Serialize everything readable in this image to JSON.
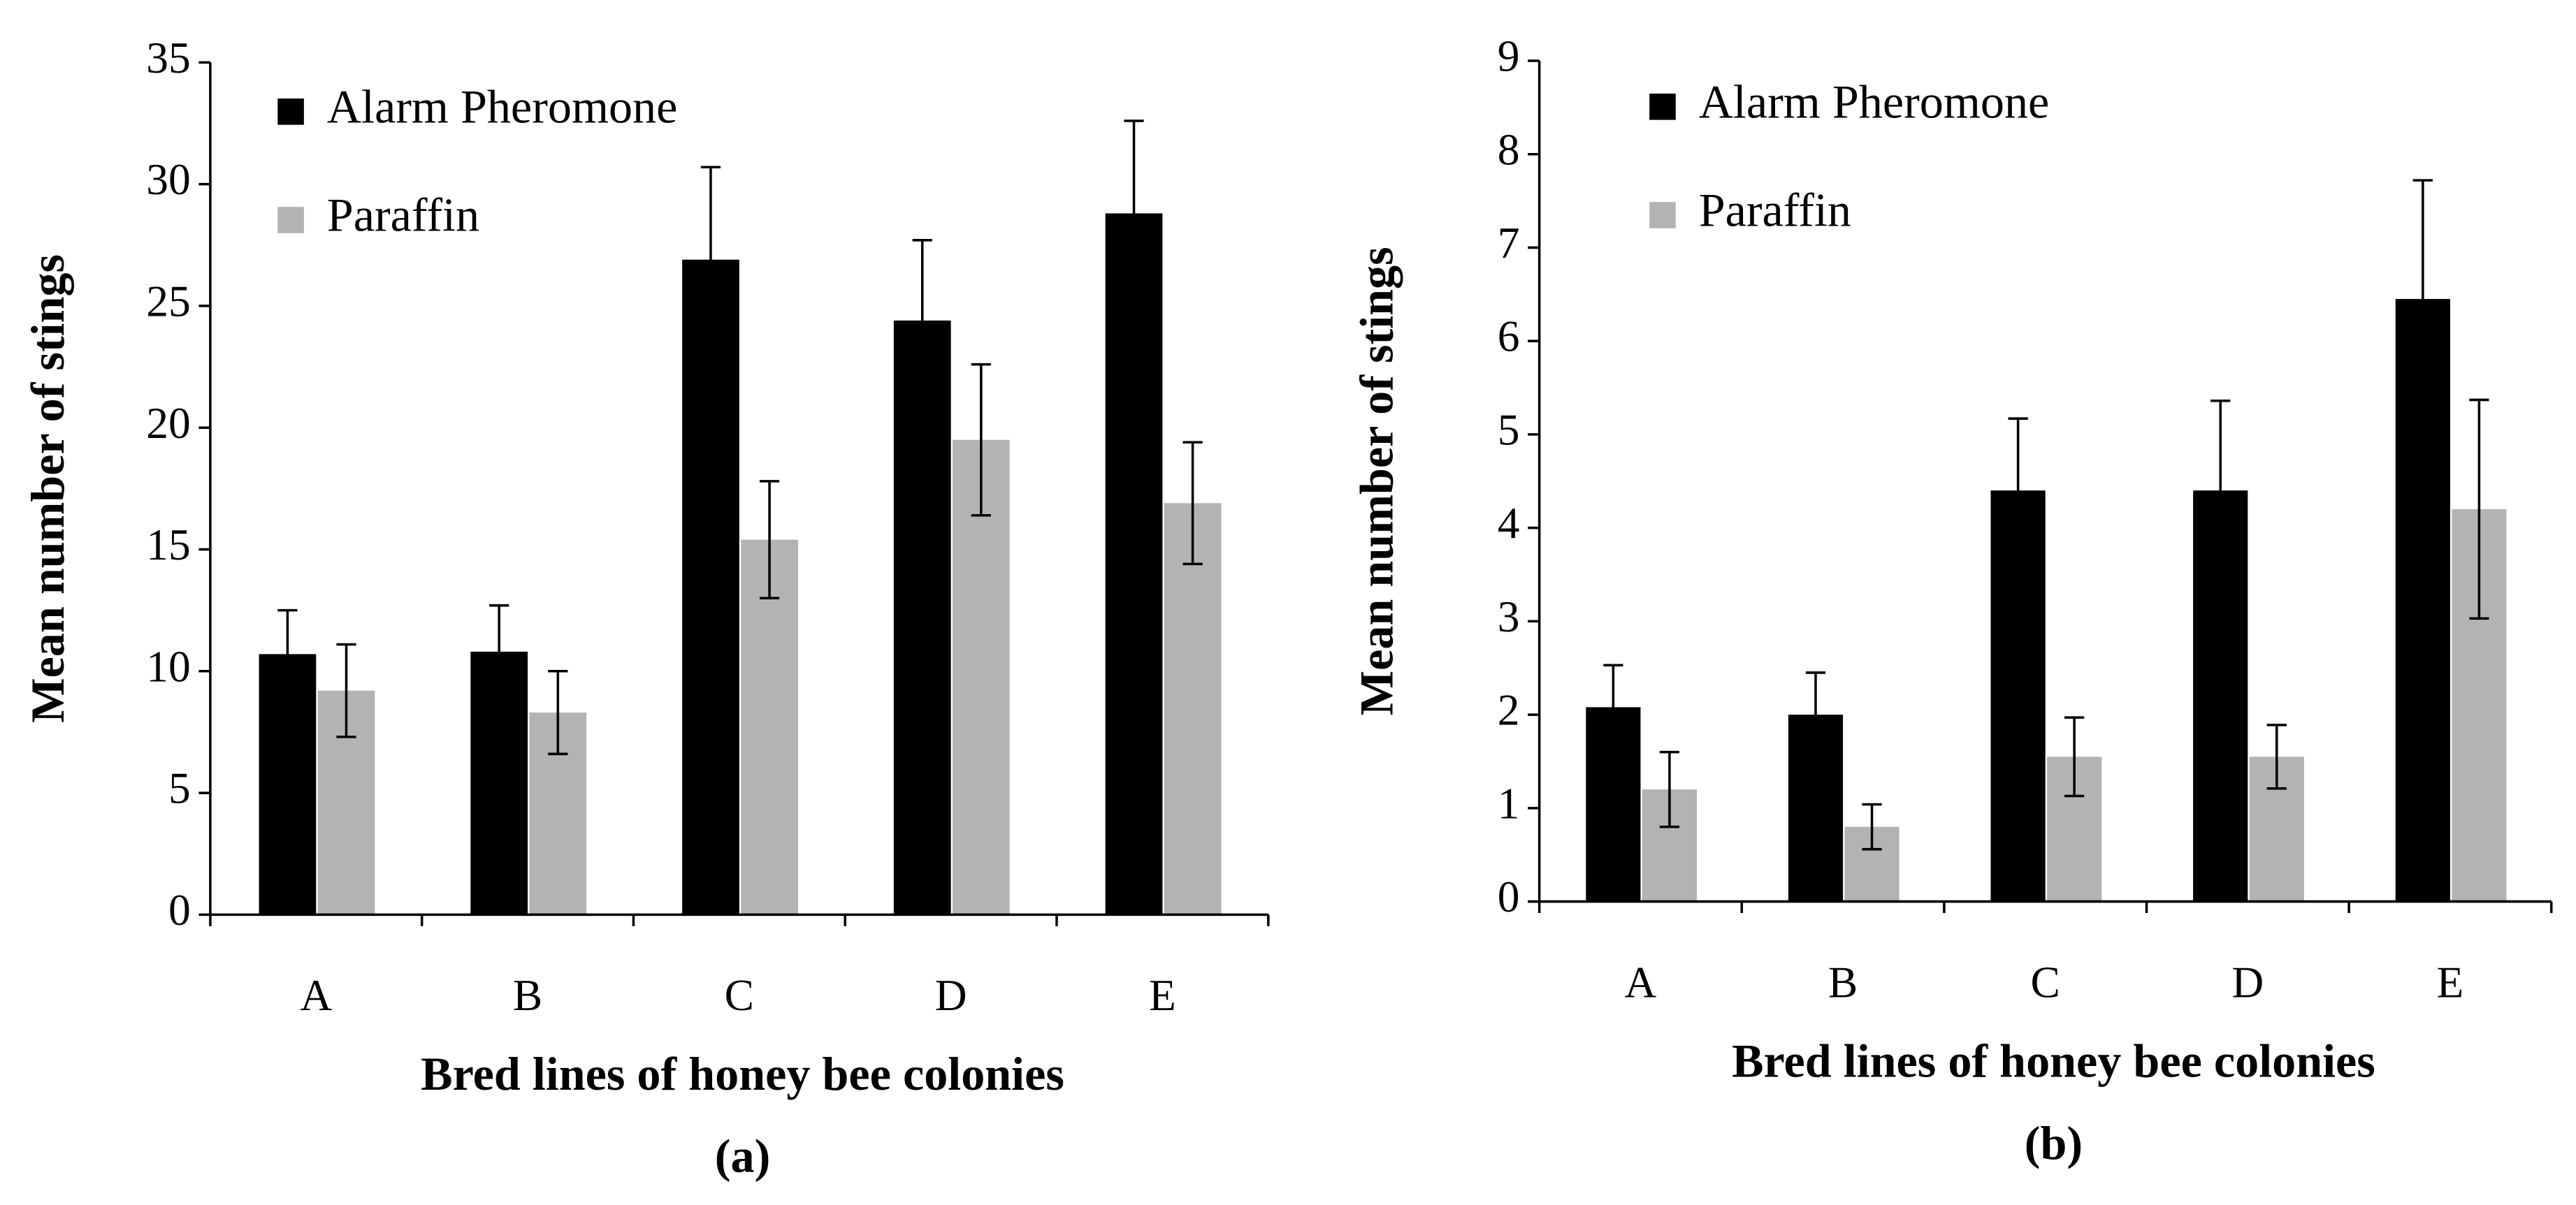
{
  "chart_data": [
    {
      "type": "bar",
      "title": "(a)",
      "x_label": "Bred lines of honey bee colonies",
      "y_label": "Mean number of stings",
      "categories": [
        "A",
        "B",
        "C",
        "D",
        "E"
      ],
      "series": [
        {
          "name": "Alarm Pheromone",
          "color": "#000000",
          "values": [
            10.7,
            10.8,
            26.9,
            24.4,
            28.8
          ],
          "errors": [
            1.8,
            1.9,
            3.8,
            3.3,
            3.8
          ]
        },
        {
          "name": "Paraffin",
          "color": "#b3b3b3",
          "values": [
            9.2,
            8.3,
            15.4,
            19.5,
            16.9
          ],
          "errors": [
            1.9,
            1.7,
            2.4,
            3.1,
            2.5
          ]
        }
      ],
      "ylim": [
        0,
        35
      ],
      "yticks": [
        0,
        5,
        10,
        15,
        20,
        25,
        30,
        35
      ],
      "legend": "top-left"
    },
    {
      "type": "bar",
      "title": "(b)",
      "x_label": "Bred lines of honey bee colonies",
      "y_label": "Mean number of stings",
      "categories": [
        "A",
        "B",
        "C",
        "D",
        "E"
      ],
      "series": [
        {
          "name": "Alarm Pheromone",
          "color": "#000000",
          "values": [
            2.08,
            2.0,
            4.4,
            4.4,
            6.45
          ],
          "errors": [
            0.45,
            0.45,
            0.77,
            0.96,
            1.27
          ]
        },
        {
          "name": "Paraffin",
          "color": "#b3b3b3",
          "values": [
            1.2,
            0.8,
            1.55,
            1.55,
            4.2
          ],
          "errors": [
            0.4,
            0.24,
            0.42,
            0.34,
            1.17
          ]
        }
      ],
      "ylim": [
        0,
        9
      ],
      "yticks": [
        0,
        1,
        2,
        3,
        4,
        5,
        6,
        7,
        8,
        9
      ],
      "legend": "top-left"
    }
  ]
}
